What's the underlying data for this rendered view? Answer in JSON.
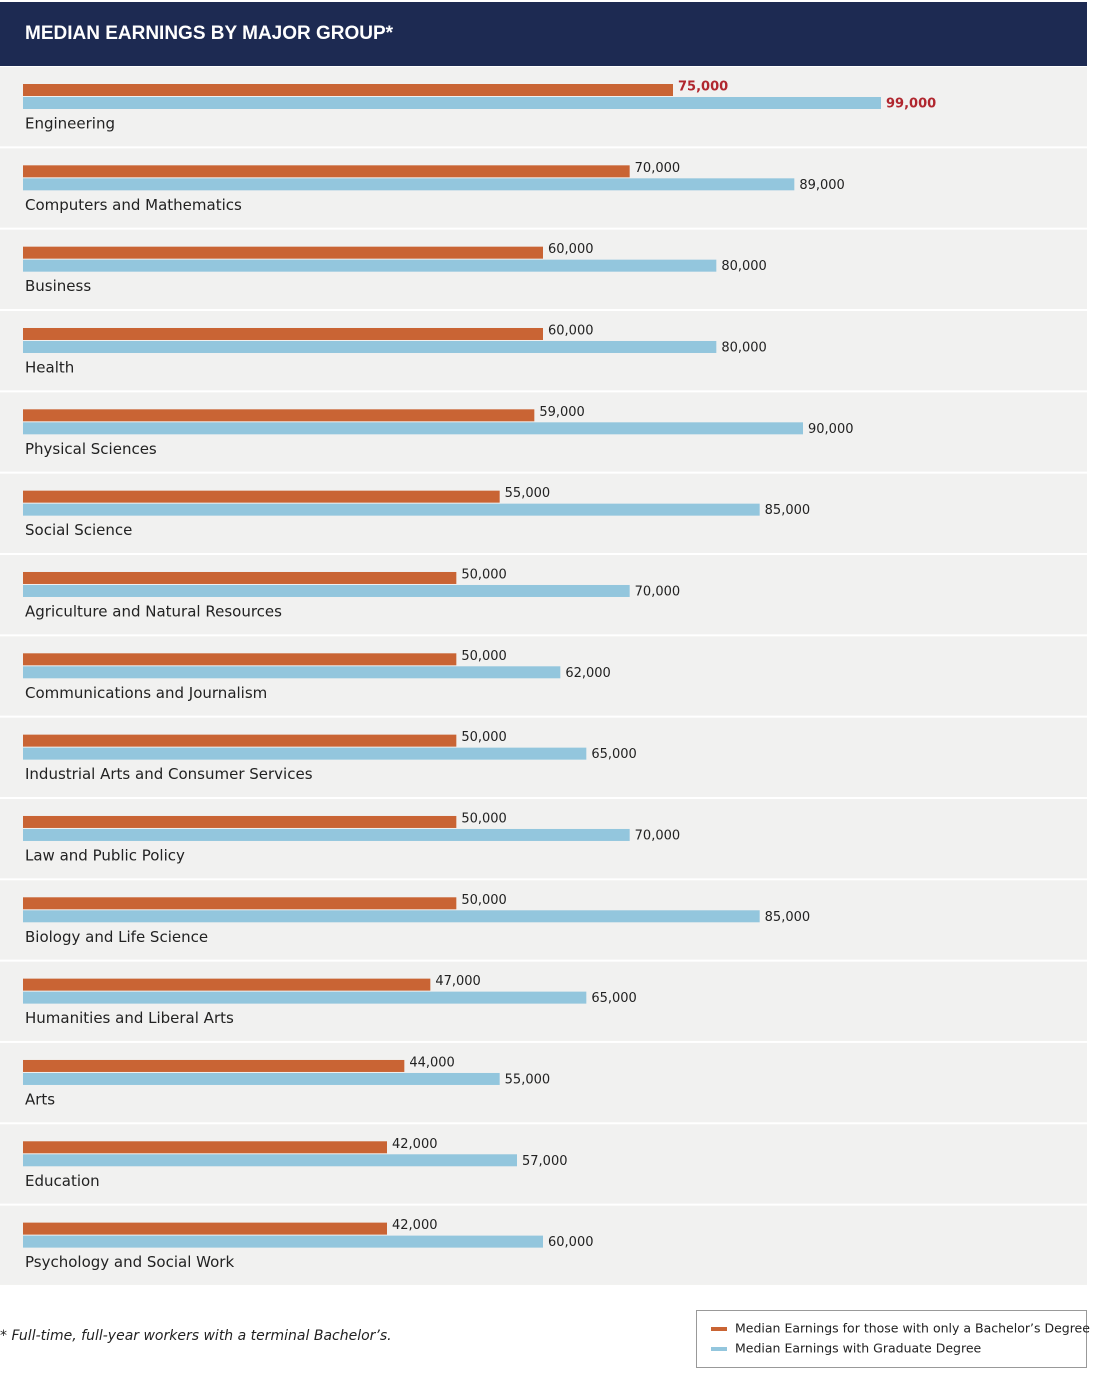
{
  "chart_data": {
    "type": "bar",
    "orientation": "horizontal",
    "title": "MEDIAN EARNINGS BY MAJOR GROUP*",
    "footnote": "* Full-time, full-year workers with a terminal Bachelor’s.",
    "categories": [
      "Engineering",
      "Computers and Mathematics",
      "Business",
      "Health",
      "Physical Sciences",
      "Social Science",
      "Agriculture and Natural Resources",
      "Communications and Journalism",
      "Industrial Arts and Consumer Services",
      "Law and Public Policy",
      "Biology and Life Science",
      "Humanities and Liberal Arts",
      "Arts",
      "Education",
      "Psychology and Social Work"
    ],
    "series": [
      {
        "name": "Median Earnings for those with only a Bachelor’s Degree",
        "color": "#c96434",
        "values": [
          75000,
          70000,
          60000,
          60000,
          59000,
          55000,
          50000,
          50000,
          50000,
          50000,
          50000,
          47000,
          44000,
          42000,
          42000
        ],
        "value_labels": [
          "75,000",
          "70,000",
          "60,000",
          "60,000",
          "59,000",
          "55,000",
          "50,000",
          "50,000",
          "50,000",
          "50,000",
          "50,000",
          "47,000",
          "44,000",
          "42,000",
          "42,000"
        ]
      },
      {
        "name": "Median Earnings with Graduate Degree",
        "color": "#93c6dd",
        "values": [
          99000,
          89000,
          80000,
          80000,
          90000,
          85000,
          70000,
          62000,
          65000,
          70000,
          85000,
          65000,
          55000,
          57000,
          60000
        ],
        "value_labels": [
          "99,000",
          "89,000",
          "80,000",
          "80,000",
          "90,000",
          "85,000",
          "70,000",
          "62,000",
          "65,000",
          "70,000",
          "85,000",
          "65,000",
          "55,000",
          "57,000",
          "60,000"
        ]
      }
    ]
  }
}
